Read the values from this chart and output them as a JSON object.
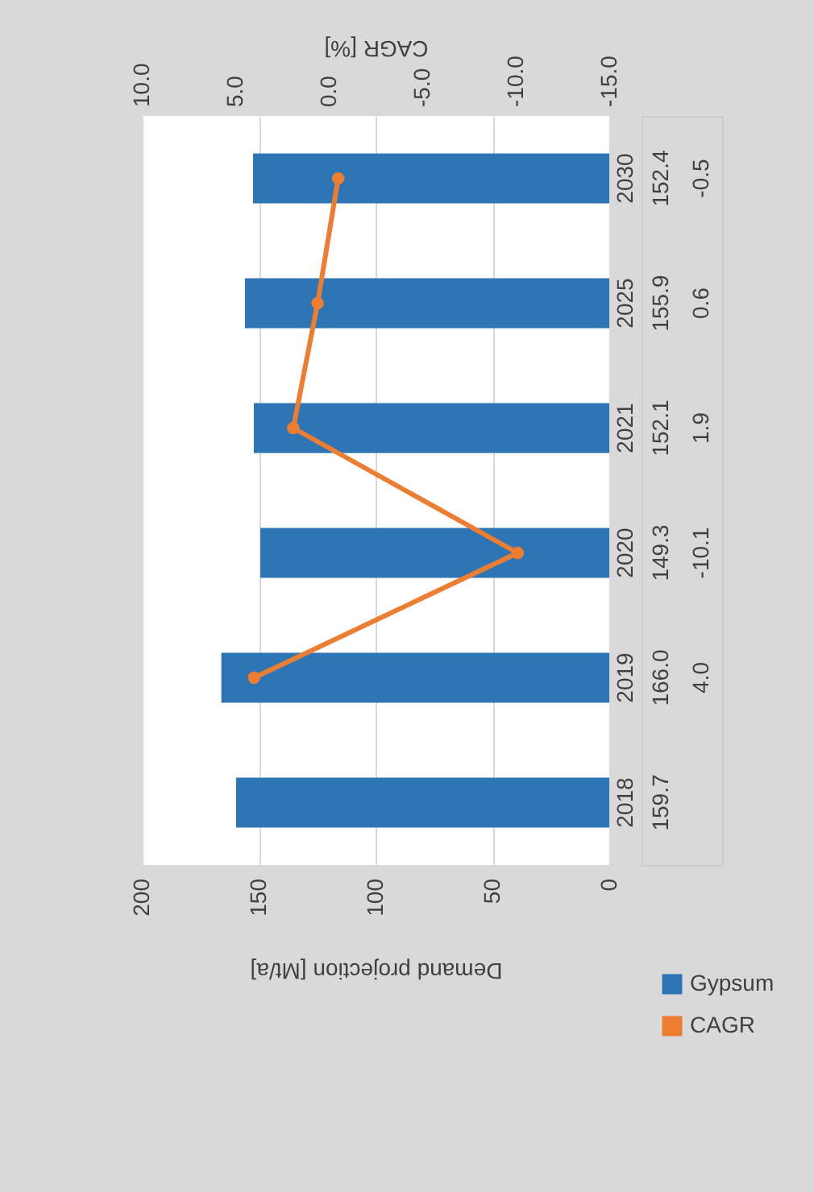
{
  "chart_data": {
    "type": "bar",
    "orientation": "horizontal",
    "categories": [
      "2030",
      "2025",
      "2021",
      "2020",
      "2019",
      "2018"
    ],
    "series": [
      {
        "name": "Gypsum",
        "color": "#2e75b6",
        "values": [
          152.4,
          155.9,
          152.1,
          149.3,
          166.0,
          159.7
        ],
        "value_labels": [
          "152.4",
          "155.9",
          "152.1",
          "149.3",
          "166.0",
          "159.7"
        ]
      },
      {
        "name": "CAGR",
        "type": "line",
        "axis": "x2",
        "color": "#ed7d31",
        "values": [
          -0.5,
          0.6,
          1.9,
          -10.1,
          4.0,
          null
        ],
        "value_labels": [
          "-0.5",
          "0.6",
          "1.9",
          "-10.1",
          "4.0",
          null
        ]
      }
    ],
    "xlabel": "Demand projection [Mt/a]",
    "x2label": "CAGR [%]",
    "xlim": [
      200,
      0
    ],
    "xticks": [
      200,
      150,
      100,
      50,
      0
    ],
    "x2lim": [
      10,
      -15
    ],
    "x2ticks": [
      {
        "value": 10,
        "label": "10.0"
      },
      {
        "value": 5,
        "label": "5.0"
      },
      {
        "value": 0,
        "label": "0.0"
      },
      {
        "value": -5,
        "label": "-5.0"
      },
      {
        "value": -10,
        "label": "-10.0"
      },
      {
        "value": -15,
        "label": "-15.0"
      }
    ],
    "grid": "x",
    "legend": "bottom right",
    "marker": "circle"
  }
}
